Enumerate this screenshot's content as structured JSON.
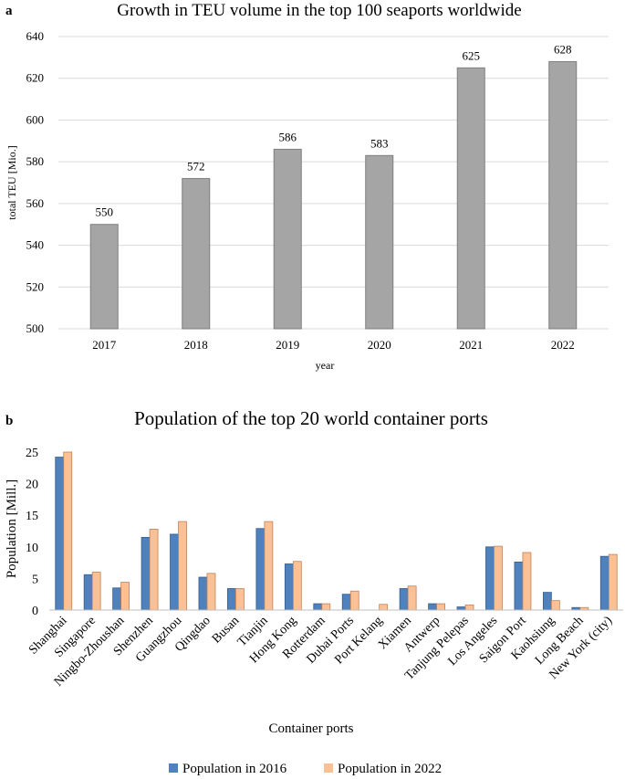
{
  "colors": {
    "bar_gray": "#a5a5a5",
    "bar_gray_edge": "#7f7f7f",
    "grid": "#d9d9d9",
    "series_2016": "#4f81bd",
    "series_2016_edge": "#385d8a",
    "series_2022": "#f9c195",
    "series_2022_edge": "#c0835a"
  },
  "chart_data": [
    {
      "panel": "a",
      "type": "bar",
      "title": "Growth in TEU volume in the top 100 seaports worldwide",
      "xlabel": "year",
      "ylabel": "total TEU [Mio.]",
      "categories": [
        "2017",
        "2018",
        "2019",
        "2020",
        "2021",
        "2022"
      ],
      "values": [
        550,
        572,
        586,
        583,
        625,
        628
      ],
      "data_labels": [
        "550",
        "572",
        "586",
        "583",
        "625",
        "628"
      ],
      "ylim": [
        500,
        640
      ],
      "yticks": [
        500,
        520,
        540,
        560,
        580,
        600,
        620,
        640
      ],
      "grid": true
    },
    {
      "panel": "b",
      "type": "bar",
      "title": "Population of the top 20 world container ports",
      "xlabel": "Container ports",
      "ylabel": "Population [Mill.]",
      "categories": [
        "Shanghai",
        "Singapore",
        "Ningbo-Zhoushan",
        "Shenzhen",
        "Guangzhou",
        "Qingdao",
        "Busan",
        "Tianjin",
        "Hong Kong",
        "Rotterdam",
        "Dubai Ports",
        "Port Kelang",
        "Xiamen",
        "Antwerp",
        "Tanjung Pelepas",
        "Los Angeles",
        "Saigon Port",
        "Kaohsiung",
        "Long Beach",
        "New York (city)"
      ],
      "series": [
        {
          "name": "Population in 2016",
          "values": [
            24.2,
            5.6,
            3.5,
            11.5,
            12.0,
            5.2,
            3.4,
            12.9,
            7.3,
            1.0,
            2.5,
            0.0,
            3.4,
            1.0,
            0.5,
            10.0,
            7.6,
            2.8,
            0.4,
            8.5
          ]
        },
        {
          "name": "Population in 2022",
          "values": [
            25.0,
            6.0,
            4.4,
            12.8,
            14.0,
            5.8,
            3.4,
            14.0,
            7.7,
            1.0,
            3.0,
            0.9,
            3.8,
            1.0,
            0.8,
            10.1,
            9.1,
            1.5,
            0.4,
            8.8
          ]
        }
      ],
      "ylim": [
        0,
        25
      ],
      "yticks": [
        0,
        5,
        10,
        15,
        20,
        25
      ],
      "grid": false,
      "legend_position": "bottom"
    }
  ]
}
